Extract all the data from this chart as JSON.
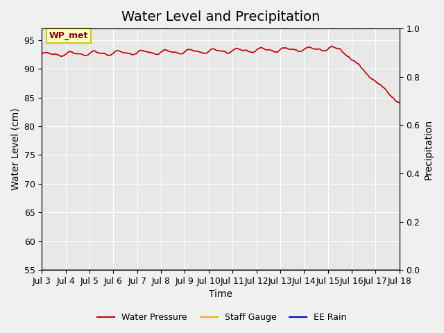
{
  "title": "Water Level and Precipitation",
  "xlabel": "Time",
  "ylabel_left": "Water Level (cm)",
  "ylabel_right": "Precipitation",
  "annotation_text": "WP_met",
  "ylim_left": [
    55,
    97
  ],
  "ylim_right": [
    0.0,
    1.0
  ],
  "yticks_left": [
    55,
    60,
    65,
    70,
    75,
    80,
    85,
    90,
    95
  ],
  "yticks_right": [
    0.0,
    0.2,
    0.4,
    0.6,
    0.8,
    1.0
  ],
  "x_tick_labels": [
    "Jul 3",
    "Jul 4",
    "Jul 5",
    "Jul 6",
    "Jul 7",
    "Jul 8",
    "Jul 9",
    "Jul 10",
    "Jul 11",
    "Jul 12",
    "Jul 13",
    "Jul 14",
    "Jul 15",
    "Jul 16",
    "Jul 17",
    "Jul 18"
  ],
  "line_color_wp": "#cc0000",
  "line_color_sg": "#ffaa00",
  "line_color_rain": "#0000cc",
  "legend_labels": [
    "Water Pressure",
    "Staff Gauge",
    "EE Rain"
  ],
  "bg_color": "#e8e8e8",
  "fig_bg_color": "#f0f0f0",
  "grid_color": "#ffffff",
  "title_fontsize": 14,
  "axis_fontsize": 10,
  "tick_fontsize": 9
}
